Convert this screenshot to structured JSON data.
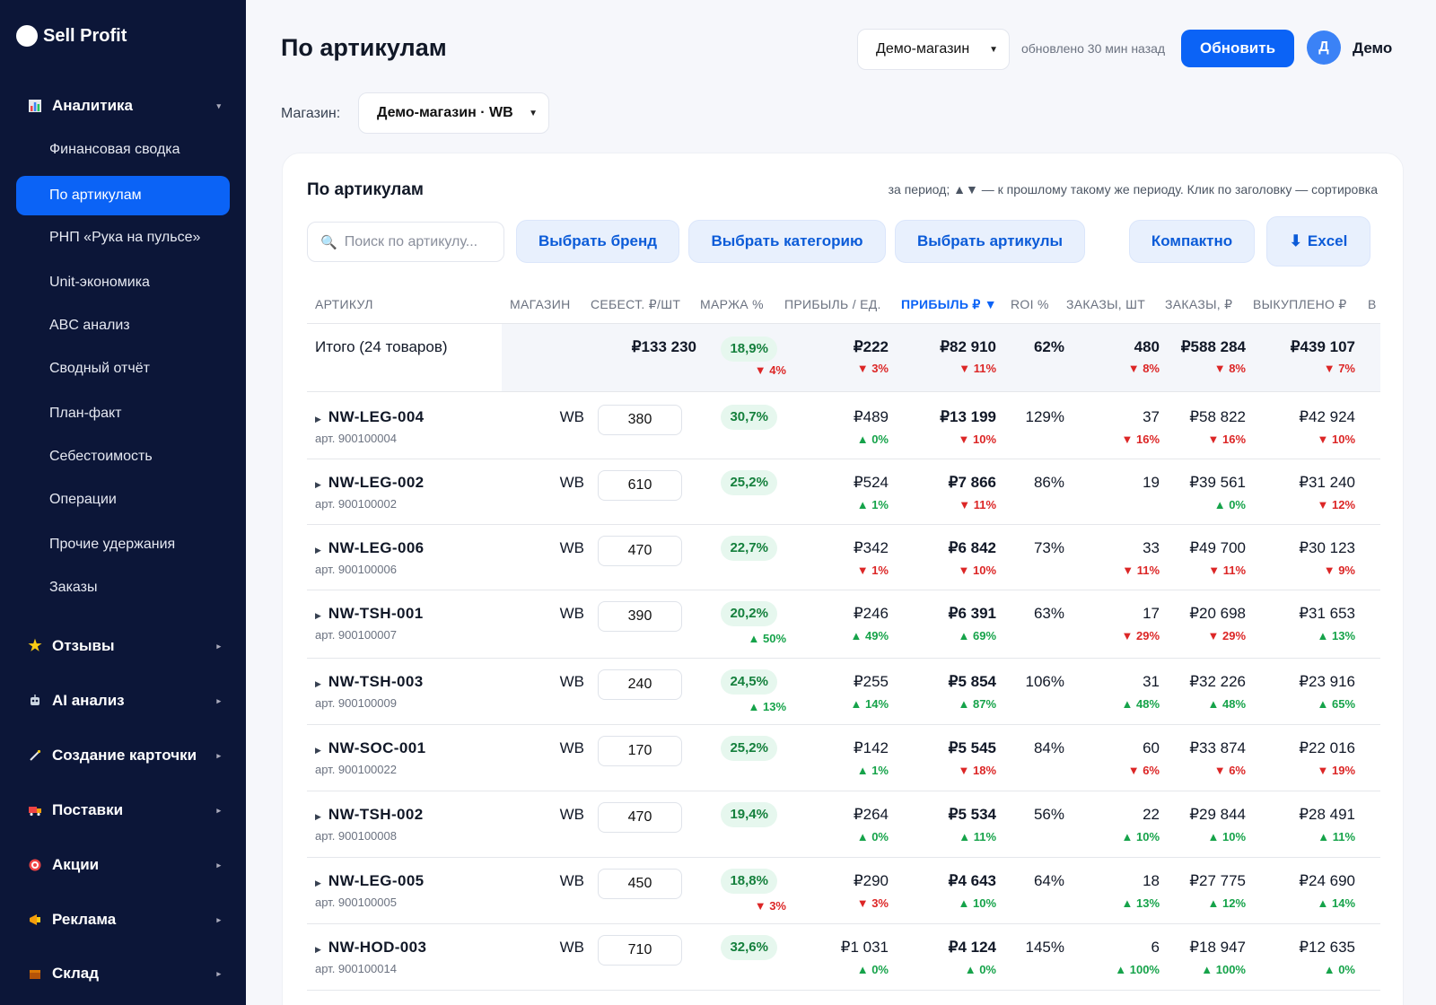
{
  "brand": {
    "name": "Sell Profit"
  },
  "sidebar": {
    "groups": [
      {
        "label": "Аналитика",
        "icon": "bar-chart-icon"
      },
      {
        "label": "Отзывы",
        "icon": "star-icon"
      },
      {
        "label": "AI анализ",
        "icon": "robot-icon"
      },
      {
        "label": "Создание карточки",
        "icon": "magic-wand-icon"
      },
      {
        "label": "Поставки",
        "icon": "truck-icon"
      },
      {
        "label": "Акции",
        "icon": "target-icon"
      },
      {
        "label": "Реклама",
        "icon": "megaphone-icon"
      },
      {
        "label": "Склад",
        "icon": "box-icon"
      }
    ],
    "items": [
      {
        "label": "Финансовая сводка"
      },
      {
        "label": "По артикулам"
      },
      {
        "label": "РНП «Рука на пульсе»"
      },
      {
        "label": "Unit-экономика"
      },
      {
        "label": "ABC анализ"
      },
      {
        "label": "Сводный отчёт"
      },
      {
        "label": "План-факт"
      },
      {
        "label": "Себестоимость"
      },
      {
        "label": "Операции"
      },
      {
        "label": "Прочие удержания"
      },
      {
        "label": "Заказы"
      }
    ]
  },
  "header": {
    "title": "По артикулам",
    "shop_select": "Демо-магазин",
    "updated": "обновлено 30 мин назад",
    "refresh_label": "Обновить",
    "avatar_letter": "Д",
    "user_name": "Демо"
  },
  "filter": {
    "label": "Магазин:",
    "value": "Демо-магазин · WB"
  },
  "card": {
    "title": "По артикулам",
    "hint": "за период; ▲▼ — к прошлому такому же периоду. Клик по заголовку — сортировка",
    "search_placeholder": "Поиск по артикулу...",
    "buttons": {
      "brand": "Выбрать бренд",
      "category": "Выбрать категорию",
      "articles": "Выбрать артикулы",
      "compact": "Компактно",
      "excel": "Excel"
    }
  },
  "table": {
    "columns": [
      "АРТИКУЛ",
      "МАГАЗИН",
      "СЕБЕСТ. ₽/ШТ",
      "МАРЖА %",
      "ПРИБЫЛЬ / ЕД.",
      "ПРИБЫЛЬ ₽ ▼",
      "ROI %",
      "ЗАКАЗЫ, ШТ",
      "ЗАКАЗЫ, ₽",
      "ВЫКУПЛЕНО ₽",
      "В"
    ],
    "total": {
      "label": "Итого (24 товаров)",
      "cost": "₽133 230",
      "margin": "18,9%",
      "margin_d": "▼ 4%",
      "ppu": "₽222",
      "ppu_d": "▼ 3%",
      "profit": "₽82 910",
      "profit_d": "▼ 11%",
      "roi": "62%",
      "orders": "480",
      "orders_d": "▼ 8%",
      "orders_rub": "₽588 284",
      "orders_rub_d": "▼ 8%",
      "bought": "₽439 107",
      "bought_d": "▼ 7%"
    },
    "rows": [
      {
        "art": "NW-LEG-004",
        "sub": "арт. 900100004",
        "shop": "WB",
        "cost": "380",
        "margin": "30,7%",
        "margin_d": "",
        "ppu": "₽489",
        "ppu_d": "▲ 0%",
        "profit": "₽13 199",
        "profit_d": "▼ 10%",
        "roi": "129%",
        "orders": "37",
        "orders_d": "▼ 16%",
        "orders_rub": "₽58 822",
        "orders_rub_d": "▼ 16%",
        "bought": "₽42 924",
        "bought_d": "▼ 10%"
      },
      {
        "art": "NW-LEG-002",
        "sub": "арт. 900100002",
        "shop": "WB",
        "cost": "610",
        "margin": "25,2%",
        "margin_d": "",
        "ppu": "₽524",
        "ppu_d": "▲ 1%",
        "profit": "₽7 866",
        "profit_d": "▼ 11%",
        "roi": "86%",
        "orders": "19",
        "orders_d": "",
        "orders_rub": "₽39 561",
        "orders_rub_d": "▲ 0%",
        "bought": "₽31 240",
        "bought_d": "▼ 12%"
      },
      {
        "art": "NW-LEG-006",
        "sub": "арт. 900100006",
        "shop": "WB",
        "cost": "470",
        "margin": "22,7%",
        "margin_d": "",
        "ppu": "₽342",
        "ppu_d": "▼ 1%",
        "profit": "₽6 842",
        "profit_d": "▼ 10%",
        "roi": "73%",
        "orders": "33",
        "orders_d": "▼ 11%",
        "orders_rub": "₽49 700",
        "orders_rub_d": "▼ 11%",
        "bought": "₽30 123",
        "bought_d": "▼ 9%"
      },
      {
        "art": "NW-TSH-001",
        "sub": "арт. 900100007",
        "shop": "WB",
        "cost": "390",
        "margin": "20,2%",
        "margin_d": "▲ 50%",
        "ppu": "₽246",
        "ppu_d": "▲ 49%",
        "profit": "₽6 391",
        "profit_d": "▲ 69%",
        "roi": "63%",
        "orders": "17",
        "orders_d": "▼ 29%",
        "orders_rub": "₽20 698",
        "orders_rub_d": "▼ 29%",
        "bought": "₽31 653",
        "bought_d": "▲ 13%"
      },
      {
        "art": "NW-TSH-003",
        "sub": "арт. 900100009",
        "shop": "WB",
        "cost": "240",
        "margin": "24,5%",
        "margin_d": "▲ 13%",
        "ppu": "₽255",
        "ppu_d": "▲ 14%",
        "profit": "₽5 854",
        "profit_d": "▲ 87%",
        "roi": "106%",
        "orders": "31",
        "orders_d": "▲ 48%",
        "orders_rub": "₽32 226",
        "orders_rub_d": "▲ 48%",
        "bought": "₽23 916",
        "bought_d": "▲ 65%"
      },
      {
        "art": "NW-SOC-001",
        "sub": "арт. 900100022",
        "shop": "WB",
        "cost": "170",
        "margin": "25,2%",
        "margin_d": "",
        "ppu": "₽142",
        "ppu_d": "▲ 1%",
        "profit": "₽5 545",
        "profit_d": "▼ 18%",
        "roi": "84%",
        "orders": "60",
        "orders_d": "▼ 6%",
        "orders_rub": "₽33 874",
        "orders_rub_d": "▼ 6%",
        "bought": "₽22 016",
        "bought_d": "▼ 19%"
      },
      {
        "art": "NW-TSH-002",
        "sub": "арт. 900100008",
        "shop": "WB",
        "cost": "470",
        "margin": "19,4%",
        "margin_d": "",
        "ppu": "₽264",
        "ppu_d": "▲ 0%",
        "profit": "₽5 534",
        "profit_d": "▲ 11%",
        "roi": "56%",
        "orders": "22",
        "orders_d": "▲ 10%",
        "orders_rub": "₽29 844",
        "orders_rub_d": "▲ 10%",
        "bought": "₽28 491",
        "bought_d": "▲ 11%"
      },
      {
        "art": "NW-LEG-005",
        "sub": "арт. 900100005",
        "shop": "WB",
        "cost": "450",
        "margin": "18,8%",
        "margin_d": "▼ 3%",
        "ppu": "₽290",
        "ppu_d": "▼ 3%",
        "profit": "₽4 643",
        "profit_d": "▲ 10%",
        "roi": "64%",
        "orders": "18",
        "orders_d": "▲ 13%",
        "orders_rub": "₽27 775",
        "orders_rub_d": "▲ 12%",
        "bought": "₽24 690",
        "bought_d": "▲ 14%"
      },
      {
        "art": "NW-HOD-003",
        "sub": "арт. 900100014",
        "shop": "WB",
        "cost": "710",
        "margin": "32,6%",
        "margin_d": "",
        "ppu": "₽1 031",
        "ppu_d": "▲ 0%",
        "profit": "₽4 124",
        "profit_d": "▲ 0%",
        "roi": "145%",
        "orders": "6",
        "orders_d": "▲ 100%",
        "orders_rub": "₽18 947",
        "orders_rub_d": "▲ 100%",
        "bought": "₽12 635",
        "bought_d": "▲ 0%"
      }
    ]
  },
  "colors": {
    "sidebar_bg": "#0c1638",
    "accent": "#0b63f6",
    "up": "#16a34a",
    "down": "#dc2626",
    "badge_bg": "#e6f7ee"
  }
}
